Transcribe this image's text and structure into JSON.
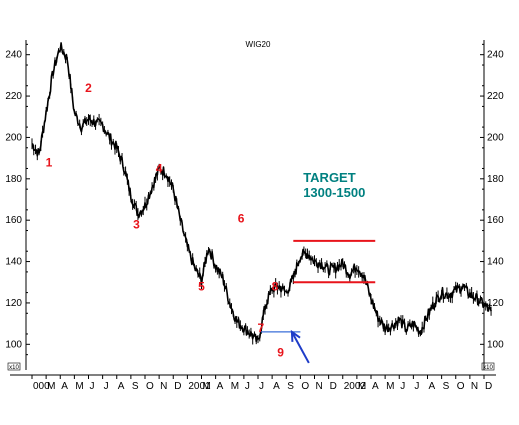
{
  "chart_data": {
    "type": "line",
    "title": "WIG20",
    "ylim": [
      90,
      250
    ],
    "y_ticks": [
      100,
      120,
      140,
      160,
      180,
      200,
      220,
      240
    ],
    "x_ticks": [
      "000",
      "M",
      "A",
      "M",
      "J",
      "J",
      "A",
      "S",
      "O",
      "N",
      "D",
      "2001",
      "M",
      "A",
      "M",
      "J",
      "J",
      "A",
      "S",
      "O",
      "N",
      "D",
      "2002",
      "M",
      "A",
      "M",
      "J",
      "J",
      "A",
      "S",
      "O",
      "N",
      "D"
    ],
    "corner_tags": [
      "x10",
      "x10"
    ],
    "series": [
      {
        "x": [
          0,
          0.5,
          1,
          1.5,
          2,
          2.5,
          3,
          3.5,
          4,
          4.5,
          5,
          5.5,
          6,
          6.5,
          7,
          7.5,
          8,
          8.5,
          9,
          9.5,
          10,
          10.5,
          11,
          11.5,
          12,
          12.5,
          13,
          13.5,
          14,
          14.5,
          15,
          15.5,
          16,
          16.5,
          17,
          17.5,
          18,
          18.5,
          19,
          19.5,
          20,
          20.5,
          21,
          21.5,
          22,
          22.5,
          23,
          23.5,
          24,
          24.5,
          25,
          25.5,
          26,
          26.5,
          27,
          27.5,
          28,
          28.5,
          29,
          29.5,
          30,
          30.5,
          31,
          31.5,
          32,
          32.5
        ],
        "values": [
          197,
          192,
          212,
          232,
          244,
          238,
          212,
          205,
          209,
          207,
          206,
          200,
          195,
          186,
          172,
          163,
          167,
          176,
          185,
          183,
          175,
          160,
          147,
          137,
          131,
          147,
          138,
          132,
          120,
          111,
          108,
          105,
          101,
          118,
          127,
          128,
          125,
          132,
          143,
          144,
          140,
          139,
          136,
          137,
          139,
          134,
          138,
          133,
          122,
          113,
          108,
          109,
          112,
          107,
          110,
          106,
          114,
          120,
          125,
          124,
          126,
          128,
          124,
          122,
          119,
          116
        ]
      }
    ],
    "annotations": {
      "wave_labels": [
        {
          "text": "1",
          "x": 1.2,
          "y": 186
        },
        {
          "text": "2",
          "x": 4.0,
          "y": 222
        },
        {
          "text": "3",
          "x": 7.4,
          "y": 156
        },
        {
          "text": "4",
          "x": 9.0,
          "y": 183
        },
        {
          "text": "5",
          "x": 12.0,
          "y": 126
        },
        {
          "text": "6",
          "x": 14.8,
          "y": 159
        },
        {
          "text": "7",
          "x": 16.2,
          "y": 106
        },
        {
          "text": "8",
          "x": 17.2,
          "y": 126
        },
        {
          "text": "9",
          "x": 17.6,
          "y": 94
        }
      ],
      "target_text_line1": "TARGET",
      "target_text_line2": "1300-1500",
      "target_lines": [
        {
          "x1": 18.5,
          "x2": 24.3,
          "y": 150
        },
        {
          "x1": 18.5,
          "x2": 24.3,
          "y": 130
        }
      ],
      "support_line": {
        "x1": 16.2,
        "x2": 19.0,
        "y": 106
      },
      "arrow": {
        "from_x": 19.6,
        "from_y": 91,
        "to_x": 18.4,
        "to_y": 106
      },
      "colors": {
        "wave": "#e8141b",
        "target_text": "#008080",
        "target_line": "#e8141b",
        "support_line": "#3a6fd8",
        "arrow": "#1e3cc8",
        "price": "#000000"
      }
    }
  }
}
